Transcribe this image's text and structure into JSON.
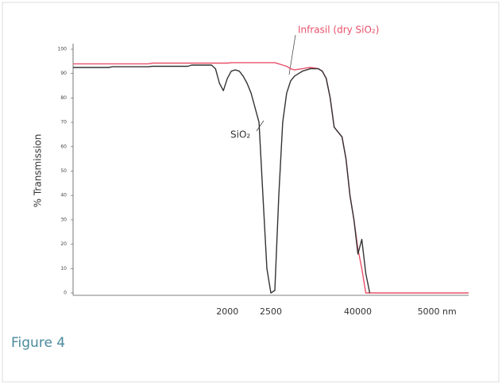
{
  "chart_data": {
    "type": "line",
    "ylabel": "% Transmission",
    "caption": "Figure 4",
    "annotations": [
      "SiO₂",
      "Infrasil (dry SiO₂)"
    ],
    "categories": [
      null,
      null,
      null,
      null,
      null,
      null,
      null,
      null,
      null,
      null,
      null,
      null,
      null,
      null,
      null,
      null,
      null,
      null,
      null,
      null,
      null,
      null,
      null,
      null,
      null,
      null,
      null,
      null,
      null,
      null,
      null,
      null,
      null,
      null,
      null,
      null,
      null,
      null,
      null,
      "2000",
      null,
      null,
      null,
      null,
      null,
      null,
      null,
      null,
      null,
      null,
      "2500",
      null,
      null,
      null,
      null,
      null,
      null,
      null,
      null,
      null,
      null,
      null,
      null,
      null,
      null,
      null,
      null,
      null,
      null,
      null,
      null,
      null,
      "40000",
      null,
      null,
      null,
      null,
      null,
      null,
      null,
      null,
      null,
      null,
      null,
      null,
      null,
      null,
      null,
      null,
      null,
      null,
      null,
      "5000 nm",
      null,
      null,
      null,
      null,
      null,
      null,
      null,
      null
    ],
    "series": [
      {
        "name": "SiO₂",
        "color": "#333333",
        "values": [
          92.5,
          92.5,
          92.5,
          92.5,
          92.5,
          92.5,
          92.5,
          92.5,
          92.5,
          92.5,
          92.8,
          92.8,
          92.8,
          92.8,
          92.8,
          92.8,
          92.8,
          92.8,
          92.8,
          92.8,
          93,
          93,
          93,
          93,
          93,
          93,
          93,
          93,
          93,
          93,
          93.5,
          93.5,
          93.5,
          93.5,
          93.5,
          93.5,
          92,
          86,
          83,
          88,
          91,
          91.5,
          91,
          89,
          86,
          82,
          76,
          70,
          40,
          10,
          0,
          1,
          40,
          70,
          82,
          87,
          89,
          90,
          91,
          91.5,
          92,
          92,
          92,
          91,
          88,
          80,
          68,
          66,
          64,
          55,
          40,
          30,
          16,
          22,
          8,
          0,
          null,
          null,
          null,
          null,
          null,
          null,
          null,
          null,
          null,
          null,
          null,
          null,
          null,
          null,
          null,
          null,
          null,
          null,
          null,
          null,
          null,
          null,
          null,
          null,
          null
        ]
      },
      {
        "name": "Infrasil (dry SiO₂)",
        "color": "#e8506a",
        "values": [
          94,
          94,
          94,
          94,
          94,
          94,
          94,
          94,
          94,
          94,
          94,
          94,
          94,
          94,
          94,
          94,
          94,
          94,
          94,
          94,
          94.3,
          94.3,
          94.3,
          94.3,
          94.3,
          94.3,
          94.3,
          94.3,
          94.3,
          94.3,
          94.3,
          94.3,
          94.3,
          94.3,
          94.3,
          94.3,
          94.3,
          94.3,
          94.3,
          94.3,
          94.5,
          94.5,
          94.5,
          94.5,
          94.5,
          94.5,
          94.5,
          94.5,
          94.5,
          94.5,
          94.5,
          94.5,
          94,
          93.5,
          93,
          92,
          91.5,
          91.8,
          92,
          92.3,
          92.5,
          92.3,
          92,
          91,
          88,
          80,
          68,
          66,
          64,
          55,
          40,
          30,
          18,
          10,
          0,
          0,
          0,
          0,
          0,
          0,
          0,
          0,
          0,
          0,
          0,
          0,
          0,
          0,
          0,
          0,
          0,
          0,
          0,
          0,
          0,
          0,
          0,
          0,
          0,
          0,
          0
        ]
      }
    ],
    "ylim": [
      0,
      100
    ],
    "yticks": [
      0,
      10,
      20,
      30,
      40,
      50,
      60,
      70,
      80,
      90,
      100
    ]
  }
}
